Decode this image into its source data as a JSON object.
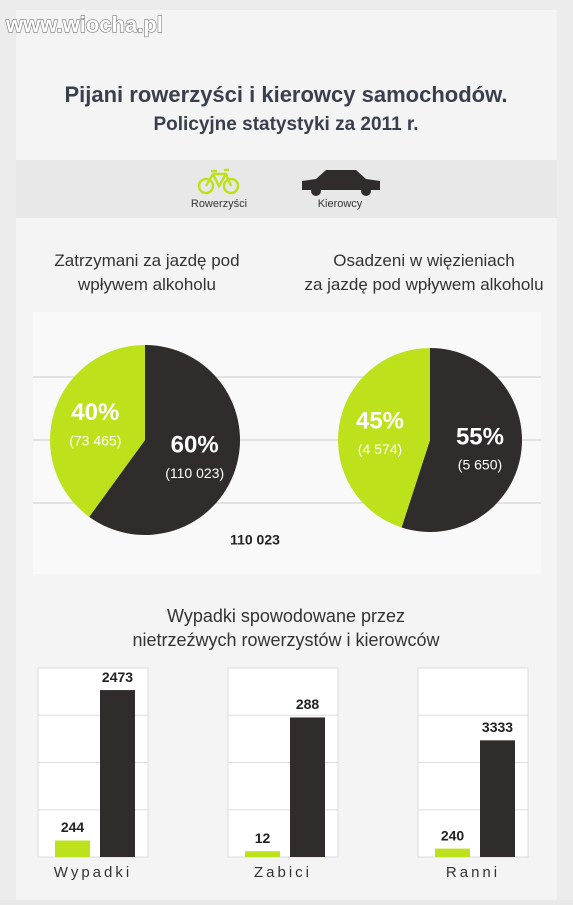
{
  "watermark": "www.wiocha.pl",
  "header": {
    "title": "Pijani rowerzyści i kierowcy samochodów.",
    "subtitle": "Policyjne statystyki za 2011 r."
  },
  "legend": [
    {
      "name": "Rowerzyści",
      "color": "#bde21c"
    },
    {
      "name": "Kierowcy",
      "color": "#302c2c"
    }
  ],
  "section_title": "Wypadki spowodowane przez nietrzeźwych rowerzystów i kierowców",
  "chart_data": [
    {
      "type": "pie",
      "title": "Zatrzymani za jazdę pod wpływem alkoholu",
      "values": [
        40,
        60
      ],
      "value_labels": [
        "40%",
        "60%"
      ],
      "counts": [
        73465,
        110023
      ],
      "count_labels": [
        "(73 465)",
        "(110 023)"
      ],
      "colors": [
        "#bde21c",
        "#302c2c"
      ],
      "annotation": "110 023"
    },
    {
      "type": "pie",
      "title": "Osadzeni w więzieniach za jazdę pod wpływem alkoholu",
      "values": [
        45,
        55
      ],
      "value_labels": [
        "45%",
        "55%"
      ],
      "counts": [
        4574,
        5650
      ],
      "count_labels": [
        "(4 574)",
        "(5 650)"
      ],
      "colors": [
        "#bde21c",
        "#302c2c"
      ]
    },
    {
      "type": "bar",
      "xlabel": "Wypadki",
      "values": [
        244,
        2473
      ],
      "colors": [
        "#bde21c",
        "#302c2c"
      ],
      "ylim": [
        0,
        2800
      ]
    },
    {
      "type": "bar",
      "xlabel": "Zabici",
      "values": [
        12,
        288
      ],
      "colors": [
        "#bde21c",
        "#302c2c"
      ],
      "ylim": [
        0,
        390
      ]
    },
    {
      "type": "bar",
      "xlabel": "Ranni",
      "values": [
        240,
        3333
      ],
      "colors": [
        "#bde21c",
        "#302c2c"
      ],
      "ylim": [
        0,
        5400
      ]
    }
  ]
}
